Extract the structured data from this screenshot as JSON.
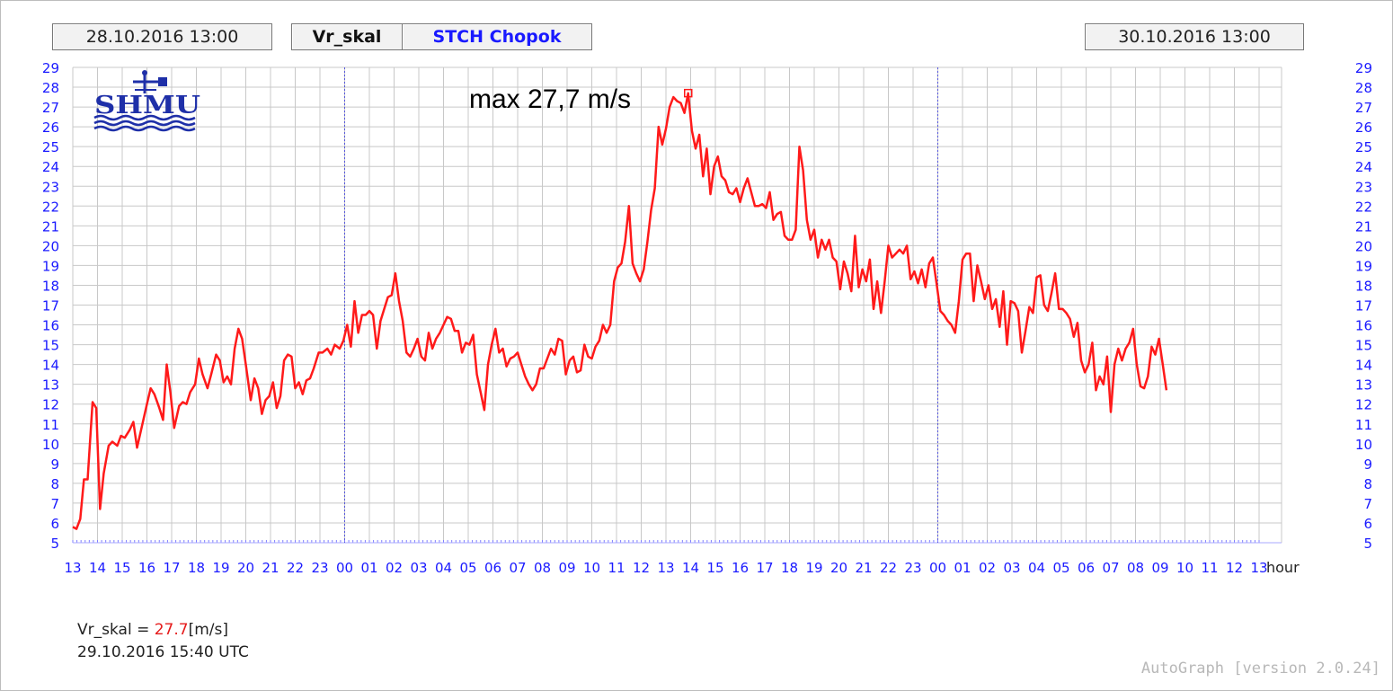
{
  "header": {
    "start_time": "28.10.2016 13:00",
    "end_time": "30.10.2016 13:00",
    "variable": "Vr_skal",
    "station": "STCH Chopok"
  },
  "logo_text": "SHMU",
  "annotation": "max 27,7 m/s",
  "readout": {
    "label": "Vr_skal = ",
    "value": "27.7",
    "unit": "[m/s]",
    "time": "29.10.2016 15:40 UTC"
  },
  "footer": "AutoGraph [version 2.0.24]",
  "colors": {
    "series": "#ff1a1a",
    "axis_text": "#1a1aff",
    "grid": "#c8c8c8",
    "day_divider": "#5555dd"
  },
  "chart_data": {
    "type": "line",
    "xlabel": "hour",
    "x_ticks": [
      "13",
      "14",
      "15",
      "16",
      "17",
      "18",
      "19",
      "20",
      "21",
      "22",
      "23",
      "00",
      "01",
      "02",
      "03",
      "04",
      "05",
      "06",
      "07",
      "08",
      "09",
      "10",
      "11",
      "12",
      "13",
      "14",
      "15",
      "16",
      "17",
      "18",
      "19",
      "20",
      "21",
      "22",
      "23",
      "00",
      "01",
      "02",
      "03",
      "04",
      "05",
      "06",
      "07",
      "08",
      "09",
      "10",
      "11",
      "12",
      "13"
    ],
    "ylim": [
      5,
      29
    ],
    "y_ticks": [
      5,
      6,
      7,
      8,
      9,
      10,
      11,
      12,
      13,
      14,
      15,
      16,
      17,
      18,
      19,
      20,
      21,
      22,
      23,
      24,
      25,
      26,
      27,
      28,
      29
    ],
    "grid": true,
    "day_dividers_hours": [
      11,
      35
    ],
    "x_range_hours": [
      0,
      48
    ],
    "series": [
      {
        "values": [
          [
            0.0,
            5.8
          ],
          [
            0.15,
            5.7
          ],
          [
            0.3,
            6.2
          ],
          [
            0.45,
            8.2
          ],
          [
            0.6,
            8.2
          ],
          [
            0.8,
            12.1
          ],
          [
            0.95,
            11.8
          ],
          [
            1.1,
            6.7
          ],
          [
            1.25,
            8.5
          ],
          [
            1.45,
            9.9
          ],
          [
            1.6,
            10.1
          ],
          [
            1.8,
            9.9
          ],
          [
            1.95,
            10.4
          ],
          [
            2.1,
            10.3
          ],
          [
            2.3,
            10.7
          ],
          [
            2.45,
            11.1
          ],
          [
            2.6,
            9.8
          ],
          [
            2.8,
            10.9
          ],
          [
            3.0,
            12.0
          ],
          [
            3.15,
            12.8
          ],
          [
            3.3,
            12.5
          ],
          [
            3.5,
            11.8
          ],
          [
            3.65,
            11.2
          ],
          [
            3.8,
            14.0
          ],
          [
            3.95,
            12.6
          ],
          [
            4.1,
            10.8
          ],
          [
            4.3,
            11.9
          ],
          [
            4.45,
            12.1
          ],
          [
            4.6,
            12.0
          ],
          [
            4.75,
            12.6
          ],
          [
            4.95,
            13.0
          ],
          [
            5.1,
            14.3
          ],
          [
            5.25,
            13.5
          ],
          [
            5.45,
            12.8
          ],
          [
            5.6,
            13.5
          ],
          [
            5.8,
            14.5
          ],
          [
            5.95,
            14.2
          ],
          [
            6.1,
            13.1
          ],
          [
            6.25,
            13.4
          ],
          [
            6.4,
            13.0
          ],
          [
            6.55,
            14.8
          ],
          [
            6.7,
            15.8
          ],
          [
            6.85,
            15.3
          ],
          [
            7.0,
            14.0
          ],
          [
            7.2,
            12.2
          ],
          [
            7.35,
            13.3
          ],
          [
            7.5,
            12.8
          ],
          [
            7.65,
            11.5
          ],
          [
            7.8,
            12.2
          ],
          [
            7.95,
            12.4
          ],
          [
            8.1,
            13.1
          ],
          [
            8.25,
            11.8
          ],
          [
            8.4,
            12.4
          ],
          [
            8.55,
            14.2
          ],
          [
            8.7,
            14.5
          ],
          [
            8.85,
            14.4
          ],
          [
            9.0,
            12.8
          ],
          [
            9.15,
            13.1
          ],
          [
            9.3,
            12.5
          ],
          [
            9.45,
            13.2
          ],
          [
            9.6,
            13.3
          ],
          [
            9.75,
            13.8
          ],
          [
            9.95,
            14.6
          ],
          [
            10.1,
            14.6
          ],
          [
            10.3,
            14.8
          ],
          [
            10.45,
            14.5
          ],
          [
            10.6,
            15.0
          ],
          [
            10.8,
            14.8
          ],
          [
            10.95,
            15.2
          ],
          [
            11.1,
            16.0
          ],
          [
            11.25,
            14.9
          ],
          [
            11.4,
            17.2
          ],
          [
            11.55,
            15.6
          ],
          [
            11.7,
            16.5
          ],
          [
            11.85,
            16.5
          ],
          [
            12.0,
            16.7
          ],
          [
            12.15,
            16.5
          ],
          [
            12.3,
            14.8
          ],
          [
            12.45,
            16.2
          ],
          [
            12.6,
            16.8
          ],
          [
            12.75,
            17.4
          ],
          [
            12.9,
            17.5
          ],
          [
            13.05,
            18.6
          ],
          [
            13.2,
            17.2
          ],
          [
            13.35,
            16.2
          ],
          [
            13.5,
            14.6
          ],
          [
            13.65,
            14.4
          ],
          [
            13.8,
            14.8
          ],
          [
            13.95,
            15.3
          ],
          [
            14.1,
            14.4
          ],
          [
            14.25,
            14.2
          ],
          [
            14.4,
            15.6
          ],
          [
            14.55,
            14.8
          ],
          [
            14.7,
            15.3
          ],
          [
            14.85,
            15.6
          ],
          [
            15.0,
            16.0
          ],
          [
            15.15,
            16.4
          ],
          [
            15.3,
            16.3
          ],
          [
            15.45,
            15.7
          ],
          [
            15.6,
            15.7
          ],
          [
            15.75,
            14.6
          ],
          [
            15.9,
            15.1
          ],
          [
            16.05,
            15.0
          ],
          [
            16.2,
            15.5
          ],
          [
            16.35,
            13.5
          ],
          [
            16.5,
            12.6
          ],
          [
            16.65,
            11.7
          ],
          [
            16.8,
            14.0
          ],
          [
            16.95,
            15.0
          ],
          [
            17.1,
            15.8
          ],
          [
            17.25,
            14.6
          ],
          [
            17.4,
            14.8
          ],
          [
            17.55,
            13.9
          ],
          [
            17.7,
            14.3
          ],
          [
            17.85,
            14.4
          ],
          [
            18.0,
            14.6
          ],
          [
            18.15,
            14.0
          ],
          [
            18.3,
            13.4
          ],
          [
            18.45,
            13.0
          ],
          [
            18.6,
            12.7
          ],
          [
            18.75,
            13.0
          ],
          [
            18.9,
            13.8
          ],
          [
            19.05,
            13.8
          ],
          [
            19.2,
            14.3
          ],
          [
            19.35,
            14.8
          ],
          [
            19.5,
            14.5
          ],
          [
            19.65,
            15.3
          ],
          [
            19.8,
            15.2
          ],
          [
            19.95,
            13.5
          ],
          [
            20.1,
            14.2
          ],
          [
            20.25,
            14.4
          ],
          [
            20.4,
            13.6
          ],
          [
            20.55,
            13.7
          ],
          [
            20.7,
            15.0
          ],
          [
            20.85,
            14.4
          ],
          [
            21.0,
            14.3
          ],
          [
            21.15,
            14.9
          ],
          [
            21.3,
            15.2
          ],
          [
            21.45,
            16.0
          ],
          [
            21.6,
            15.6
          ],
          [
            21.75,
            16.0
          ],
          [
            21.9,
            18.2
          ],
          [
            22.05,
            18.9
          ],
          [
            22.2,
            19.1
          ],
          [
            22.35,
            20.2
          ],
          [
            22.5,
            22.0
          ],
          [
            22.65,
            19.1
          ],
          [
            22.8,
            18.6
          ],
          [
            22.95,
            18.2
          ],
          [
            23.1,
            18.8
          ],
          [
            23.25,
            20.2
          ],
          [
            23.4,
            21.8
          ],
          [
            23.55,
            22.9
          ],
          [
            23.7,
            26.0
          ],
          [
            23.85,
            25.1
          ],
          [
            24.0,
            25.9
          ],
          [
            24.15,
            27.0
          ],
          [
            24.3,
            27.5
          ],
          [
            24.45,
            27.3
          ],
          [
            24.6,
            27.2
          ],
          [
            24.75,
            26.7
          ],
          [
            24.9,
            27.7
          ],
          [
            25.05,
            25.8
          ],
          [
            25.2,
            24.9
          ],
          [
            25.35,
            25.6
          ],
          [
            25.5,
            23.5
          ],
          [
            25.65,
            24.9
          ],
          [
            25.8,
            22.6
          ],
          [
            25.95,
            24.0
          ],
          [
            26.1,
            24.5
          ],
          [
            26.25,
            23.5
          ],
          [
            26.4,
            23.3
          ],
          [
            26.55,
            22.7
          ],
          [
            26.7,
            22.6
          ],
          [
            26.85,
            22.9
          ],
          [
            27.0,
            22.2
          ],
          [
            27.15,
            22.9
          ],
          [
            27.3,
            23.4
          ],
          [
            27.45,
            22.7
          ],
          [
            27.6,
            22.0
          ],
          [
            27.75,
            22.0
          ],
          [
            27.9,
            22.1
          ],
          [
            28.05,
            21.9
          ],
          [
            28.2,
            22.7
          ],
          [
            28.35,
            21.3
          ],
          [
            28.5,
            21.6
          ],
          [
            28.65,
            21.7
          ],
          [
            28.8,
            20.5
          ],
          [
            28.95,
            20.3
          ],
          [
            29.1,
            20.3
          ],
          [
            29.25,
            20.8
          ],
          [
            29.4,
            25.0
          ],
          [
            29.55,
            23.8
          ],
          [
            29.7,
            21.3
          ],
          [
            29.85,
            20.3
          ],
          [
            30.0,
            20.8
          ],
          [
            30.15,
            19.4
          ],
          [
            30.3,
            20.3
          ],
          [
            30.45,
            19.8
          ],
          [
            30.6,
            20.3
          ],
          [
            30.75,
            19.4
          ],
          [
            30.9,
            19.2
          ],
          [
            31.05,
            17.8
          ],
          [
            31.2,
            19.2
          ],
          [
            31.35,
            18.6
          ],
          [
            31.5,
            17.7
          ],
          [
            31.65,
            20.5
          ],
          [
            31.8,
            17.9
          ],
          [
            31.95,
            18.8
          ],
          [
            32.1,
            18.2
          ],
          [
            32.25,
            19.3
          ],
          [
            32.4,
            16.8
          ],
          [
            32.55,
            18.2
          ],
          [
            32.7,
            16.6
          ],
          [
            32.85,
            18.2
          ],
          [
            33.0,
            20.0
          ],
          [
            33.15,
            19.4
          ],
          [
            33.3,
            19.6
          ],
          [
            33.45,
            19.8
          ],
          [
            33.6,
            19.6
          ],
          [
            33.75,
            20.0
          ],
          [
            33.9,
            18.3
          ],
          [
            34.05,
            18.7
          ],
          [
            34.2,
            18.1
          ],
          [
            34.35,
            18.8
          ],
          [
            34.5,
            17.9
          ],
          [
            34.65,
            19.1
          ],
          [
            34.8,
            19.4
          ],
          [
            34.95,
            18.1
          ],
          [
            35.1,
            16.7
          ],
          [
            35.25,
            16.5
          ],
          [
            35.4,
            16.2
          ],
          [
            35.55,
            16.0
          ],
          [
            35.7,
            15.6
          ],
          [
            35.85,
            17.2
          ],
          [
            36.0,
            19.3
          ],
          [
            36.15,
            19.6
          ],
          [
            36.3,
            19.6
          ],
          [
            36.45,
            17.2
          ],
          [
            36.6,
            19.0
          ],
          [
            36.75,
            18.2
          ],
          [
            36.9,
            17.3
          ],
          [
            37.05,
            18.0
          ],
          [
            37.2,
            16.8
          ],
          [
            37.35,
            17.3
          ],
          [
            37.5,
            15.9
          ],
          [
            37.65,
            17.7
          ],
          [
            37.8,
            15.0
          ],
          [
            37.95,
            17.2
          ],
          [
            38.1,
            17.1
          ],
          [
            38.25,
            16.7
          ],
          [
            38.4,
            14.6
          ],
          [
            38.55,
            15.7
          ],
          [
            38.7,
            16.9
          ],
          [
            38.85,
            16.6
          ],
          [
            39.0,
            18.4
          ],
          [
            39.15,
            18.5
          ],
          [
            39.3,
            17.0
          ],
          [
            39.45,
            16.7
          ],
          [
            39.6,
            17.6
          ],
          [
            39.75,
            18.6
          ],
          [
            39.9,
            16.8
          ],
          [
            40.05,
            16.8
          ],
          [
            40.2,
            16.6
          ],
          [
            40.35,
            16.3
          ],
          [
            40.5,
            15.4
          ],
          [
            40.65,
            16.1
          ],
          [
            40.8,
            14.2
          ],
          [
            40.95,
            13.6
          ],
          [
            41.1,
            14.0
          ],
          [
            41.25,
            15.1
          ],
          [
            41.4,
            12.7
          ],
          [
            41.55,
            13.4
          ],
          [
            41.7,
            13.0
          ],
          [
            41.85,
            14.4
          ],
          [
            42.0,
            11.6
          ],
          [
            42.15,
            14.0
          ],
          [
            42.3,
            14.8
          ],
          [
            42.45,
            14.2
          ],
          [
            42.6,
            14.8
          ],
          [
            42.75,
            15.1
          ],
          [
            42.9,
            15.8
          ],
          [
            43.05,
            14.0
          ],
          [
            43.2,
            12.9
          ],
          [
            43.35,
            12.8
          ],
          [
            43.5,
            13.4
          ],
          [
            43.65,
            14.9
          ],
          [
            43.8,
            14.5
          ],
          [
            43.95,
            15.3
          ],
          [
            44.1,
            14.0
          ],
          [
            44.25,
            12.7
          ]
        ]
      }
    ],
    "max_marker": {
      "x": 24.9,
      "y": 27.7
    }
  }
}
